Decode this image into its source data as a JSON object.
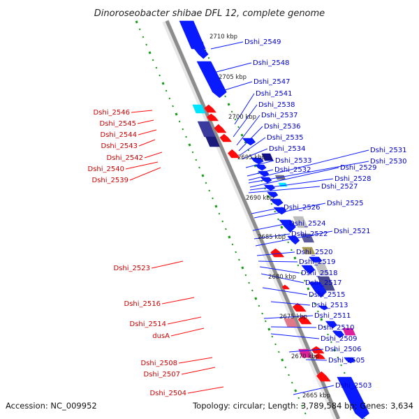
{
  "title": "Dinoroseobacter shibae DFL 12, complete genome",
  "colors": {
    "forward": "#0a1aff",
    "reverse": "#ff0a0a",
    "forward_label": "#0000cc",
    "reverse_label": "#cc0000",
    "axis": "#8c8c8c",
    "ticks": "#1a9a1a"
  },
  "kbp_labels": [
    "2710 kbp",
    "2705 kbp",
    "2700 kbp",
    "2695 kbp",
    "2690 kbp",
    "2685 kbp",
    "2680 kbp",
    "2675 kbp",
    "2670 kbp",
    "2665 kbp"
  ],
  "forward_genes": [
    "Dshi_2549",
    "Dshi_2548",
    "Dshi_2547",
    "Dshi_2541",
    "Dshi_2538",
    "Dshi_2537",
    "Dshi_2536",
    "Dshi_2535",
    "Dshi_2534",
    "Dshi_2533",
    "Dshi_2532",
    "Dshi_2531",
    "Dshi_2530",
    "Dshi_2529",
    "Dshi_2528",
    "Dshi_2527",
    "Dshi_2526",
    "Dshi_2525",
    "Dshi_2524",
    "Dshi_2522",
    "Dshi_2521",
    "Dshi_2520",
    "Dshi_2519",
    "Dshi_2518",
    "Dshi_2517",
    "Dshi_2515",
    "Dshi_2513",
    "Dshi_2511",
    "Dshi_2510",
    "Dshi_2509",
    "Dshi_2506",
    "Dshi_2505",
    "Dshi_2503"
  ],
  "reverse_genes": [
    "Dshi_2546",
    "Dshi_2545",
    "Dshi_2544",
    "Dshi_2543",
    "Dshi_2542",
    "Dshi_2540",
    "Dshi_2539",
    "Dshi_2523",
    "Dshi_2516",
    "Dshi_2514",
    "dusA",
    "Dshi_2508",
    "Dshi_2507",
    "Dshi_2504"
  ],
  "footer": {
    "accession": "Accession: NC_009952",
    "topology": "Topology: circular; Length: 3,789,584 bp; Genes: 3,634"
  }
}
